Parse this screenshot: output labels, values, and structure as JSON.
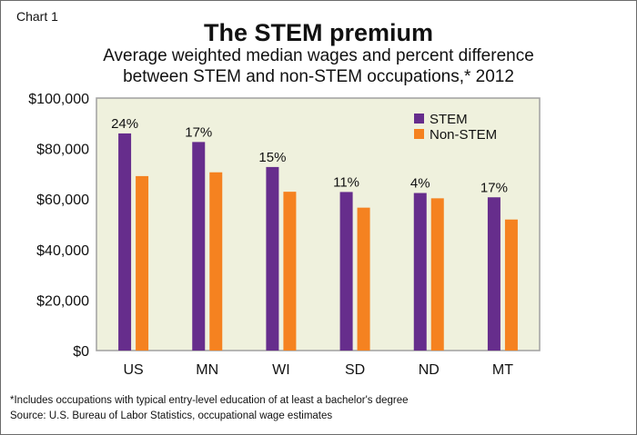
{
  "chart_label": "Chart 1",
  "footnotes": [
    "*Includes occupations with typical entry-level education of at least a bachelor's degree",
    "Source: U.S. Bureau of Labor Statistics, occupational wage estimates"
  ],
  "chart_data": {
    "type": "bar",
    "title": "The STEM premium",
    "subtitle": [
      "Average weighted median wages and percent difference",
      "between STEM and non-STEM occupations,* 2012"
    ],
    "categories": [
      "US",
      "MN",
      "WI",
      "SD",
      "ND",
      "MT"
    ],
    "series": [
      {
        "name": "STEM",
        "color": "#662d8c",
        "values": [
          86000,
          82600,
          72700,
          62800,
          62400,
          60700
        ]
      },
      {
        "name": "Non-STEM",
        "color": "#f58220",
        "values": [
          69100,
          70600,
          62900,
          56600,
          60300,
          51900
        ]
      }
    ],
    "annotations": [
      "24%",
      "17%",
      "15%",
      "11%",
      "4%",
      "17%"
    ],
    "yticks": [
      "$0",
      "$20,000",
      "$40,000",
      "$60,000",
      "$80,000",
      "$100,000"
    ],
    "ylim": [
      0,
      100000
    ],
    "grid": false,
    "legend": "top-right",
    "plot_background": "#eff1dd"
  }
}
